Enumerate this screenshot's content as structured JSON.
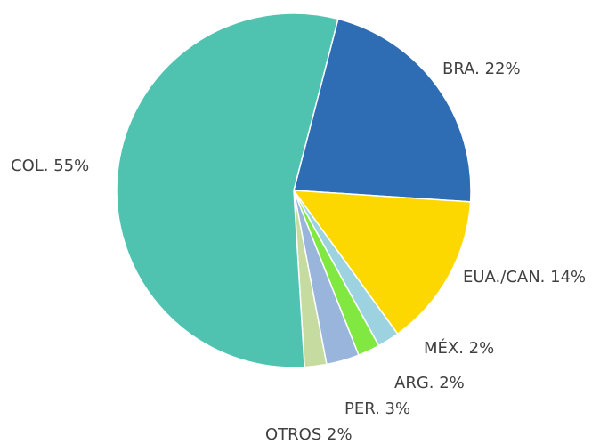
{
  "chart_data": {
    "type": "pie",
    "values": [
      22,
      14,
      2,
      2,
      3,
      2,
      55
    ],
    "value_labels": [
      "BRA. 22%",
      "EUA./CAN. 14%",
      "MÉX. 2%",
      "ARG. 2%",
      "PER. 3%",
      "OTROS 2%",
      "COL. 55%"
    ],
    "colors": [
      "#2e6db4",
      "#fdd800",
      "#9dd3e0",
      "#80e840",
      "#99b5dc",
      "#c6dba0",
      "#4fc3b0"
    ]
  }
}
